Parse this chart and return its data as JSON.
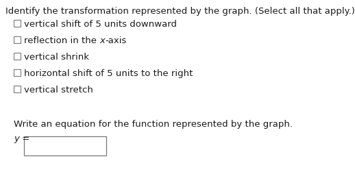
{
  "title": "Identify the transformation represented by the graph. (Select all that apply.)",
  "options": [
    "vertical shift of 5 units downward",
    "reflection in the x-axis",
    "vertical shrink",
    "horizontal shift of 5 units to the right",
    "vertical stretch"
  ],
  "option2_before": "reflection in the ",
  "option2_italic": "x",
  "option2_after": "-axis",
  "bottom_label": "Write an equation for the function represented by the graph.",
  "y_italic": "y",
  "y_normal": " =",
  "bg_color": "#ffffff",
  "text_color": "#1a1a1a",
  "font_size_title": 9.5,
  "font_size_options": 9.5,
  "font_size_bottom": 9.5,
  "checkbox_edge_color": "#777777"
}
